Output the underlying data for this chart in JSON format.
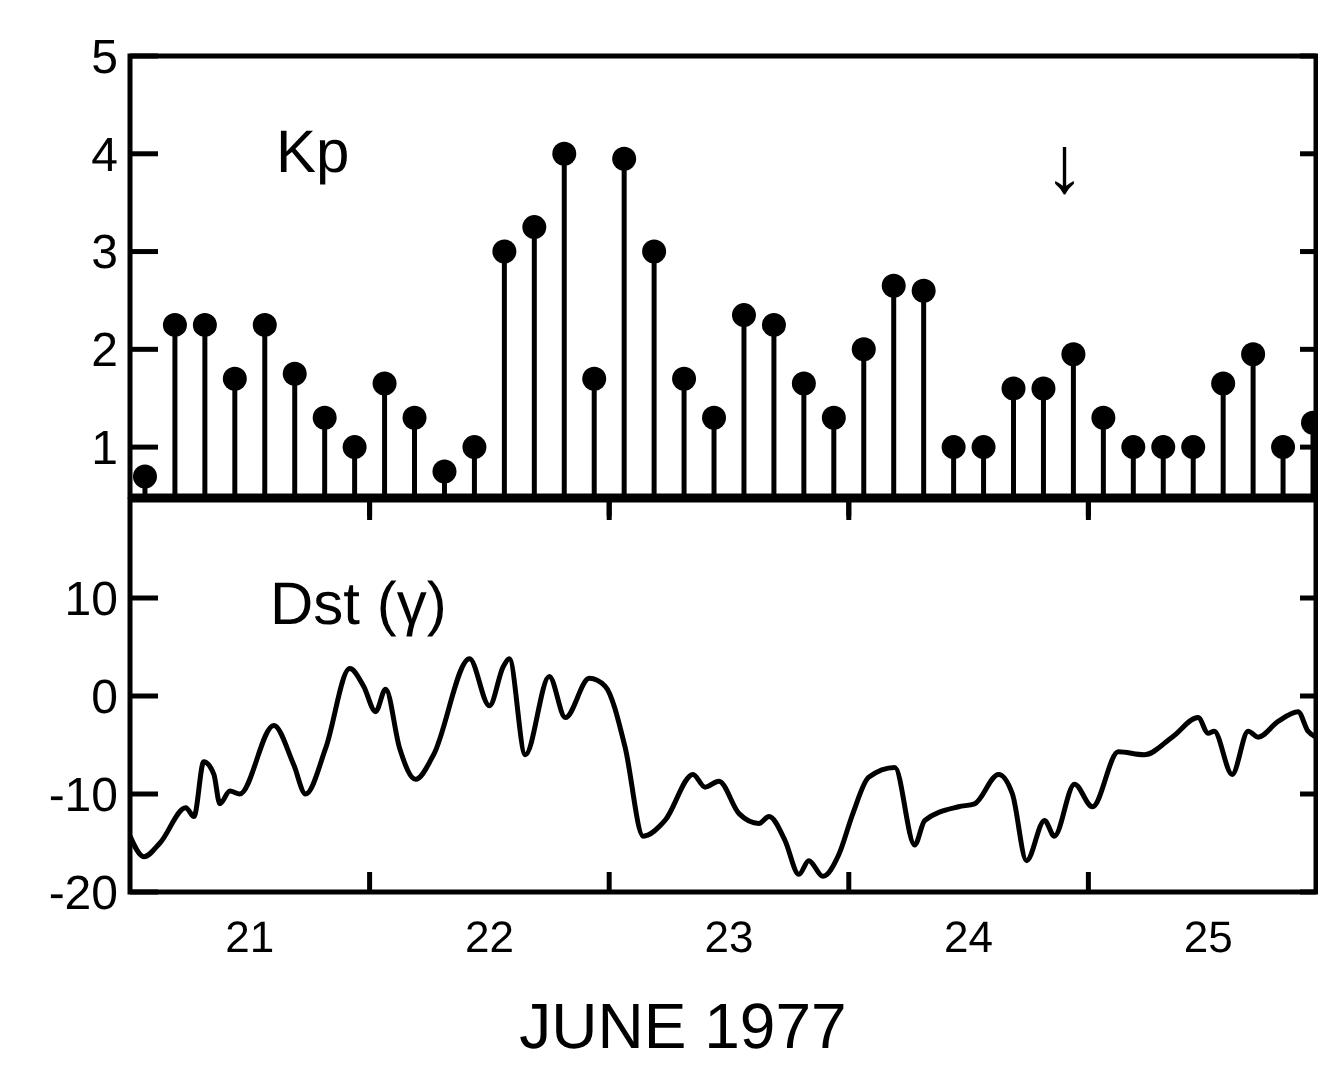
{
  "chart_data": [
    {
      "type": "lollipop",
      "title": "Kp",
      "marker": "circle",
      "tick_labels": "y",
      "x": [
        21.0625,
        21.1875,
        21.3125,
        21.4375,
        21.5625,
        21.6875,
        21.8125,
        21.9375,
        22.0625,
        22.1875,
        22.3125,
        22.4375,
        22.5625,
        22.6875,
        22.8125,
        22.9375,
        23.0625,
        23.1875,
        23.3125,
        23.4375,
        23.5625,
        23.6875,
        23.8125,
        23.9375,
        24.0625,
        24.1875,
        24.3125,
        24.4375,
        24.5625,
        24.6875,
        24.8125,
        24.9375,
        25.0625,
        25.1875,
        25.3125,
        25.4375,
        25.5625,
        25.6875,
        25.8125,
        25.9375
      ],
      "values": [
        0.7,
        2.25,
        2.25,
        1.7,
        2.25,
        1.75,
        1.3,
        1.0,
        1.65,
        1.3,
        0.75,
        1.0,
        3.0,
        3.25,
        4.0,
        1.7,
        3.95,
        3.0,
        1.7,
        1.3,
        2.35,
        2.25,
        1.65,
        1.3,
        2.0,
        2.65,
        2.6,
        1.0,
        1.0,
        1.6,
        1.6,
        1.95,
        1.3,
        1.0,
        1.0,
        1.0,
        1.65,
        1.95,
        1.0,
        1.25
      ],
      "color": "#000000",
      "xlim": [
        21,
        25.95
      ],
      "xticks": [
        {
          "value": 22,
          "label": null
        },
        {
          "value": 23,
          "label": null
        },
        {
          "value": 24,
          "label": null
        },
        {
          "value": 25,
          "label": null
        }
      ],
      "ylim": [
        0.5,
        5
      ],
      "yticks": [
        1,
        2,
        3,
        4,
        5
      ],
      "annotations": [
        "↓"
      ]
    },
    {
      "type": "line",
      "title": "Dst (γ)",
      "xlabel": "JUNE 1977",
      "color": "#000000",
      "x": [
        21.0,
        21.058,
        21.125,
        21.233,
        21.267,
        21.308,
        21.35,
        21.375,
        21.417,
        21.458,
        21.6,
        21.683,
        21.733,
        21.817,
        21.917,
        21.975,
        22.025,
        22.067,
        22.125,
        22.192,
        22.267,
        22.417,
        22.5,
        22.558,
        22.583,
        22.65,
        22.75,
        22.817,
        22.917,
        22.983,
        23.067,
        23.142,
        23.233,
        23.35,
        23.4,
        23.458,
        23.542,
        23.625,
        23.667,
        23.733,
        23.792,
        23.833,
        23.892,
        23.958,
        24.017,
        24.083,
        24.192,
        24.275,
        24.317,
        24.458,
        24.525,
        24.625,
        24.683,
        24.742,
        24.817,
        24.858,
        24.942,
        25.017,
        25.125,
        25.233,
        25.35,
        25.458,
        25.5,
        25.525,
        25.6,
        25.667,
        25.708,
        25.792,
        25.875,
        25.917,
        25.95
      ],
      "values": [
        -14.3,
        -16.4,
        -15,
        -11.4,
        -12.3,
        -6.7,
        -8,
        -11,
        -9.7,
        -10,
        -3,
        -7,
        -10,
        -5.3,
        2.8,
        1,
        -1.6,
        0.7,
        -5.3,
        -8.5,
        -6,
        3.8,
        -1,
        3,
        3.8,
        -6,
        2,
        -2.2,
        1.8,
        1,
        -5.3,
        -14.3,
        -12.7,
        -8,
        -9.3,
        -8.7,
        -12,
        -13,
        -12.3,
        -14.7,
        -18.2,
        -16.8,
        -18.4,
        -16.2,
        -12,
        -8.3,
        -7.3,
        -15.2,
        -12.7,
        -11.3,
        -11,
        -8,
        -10,
        -16.8,
        -12.7,
        -14.3,
        -9,
        -11.3,
        -5.7,
        -6,
        -4.2,
        -2.2,
        -3.8,
        -3.6,
        -8,
        -3.6,
        -4.2,
        -2.6,
        -1.6,
        -3.6,
        -4.2
      ],
      "xlim": [
        21,
        25.95
      ],
      "xticks": [
        {
          "value": 21.5,
          "label": "21"
        },
        {
          "value": 22,
          "label": null
        },
        {
          "value": 22.5,
          "label": "22"
        },
        {
          "value": 23,
          "label": null
        },
        {
          "value": 23.5,
          "label": "23"
        },
        {
          "value": 24,
          "label": null
        },
        {
          "value": 24.5,
          "label": "24"
        },
        {
          "value": 25,
          "label": null
        },
        {
          "value": 25.5,
          "label": "25"
        }
      ],
      "ylim": [
        -20,
        20
      ],
      "yticks": [
        -20,
        -10,
        0,
        10
      ]
    }
  ]
}
